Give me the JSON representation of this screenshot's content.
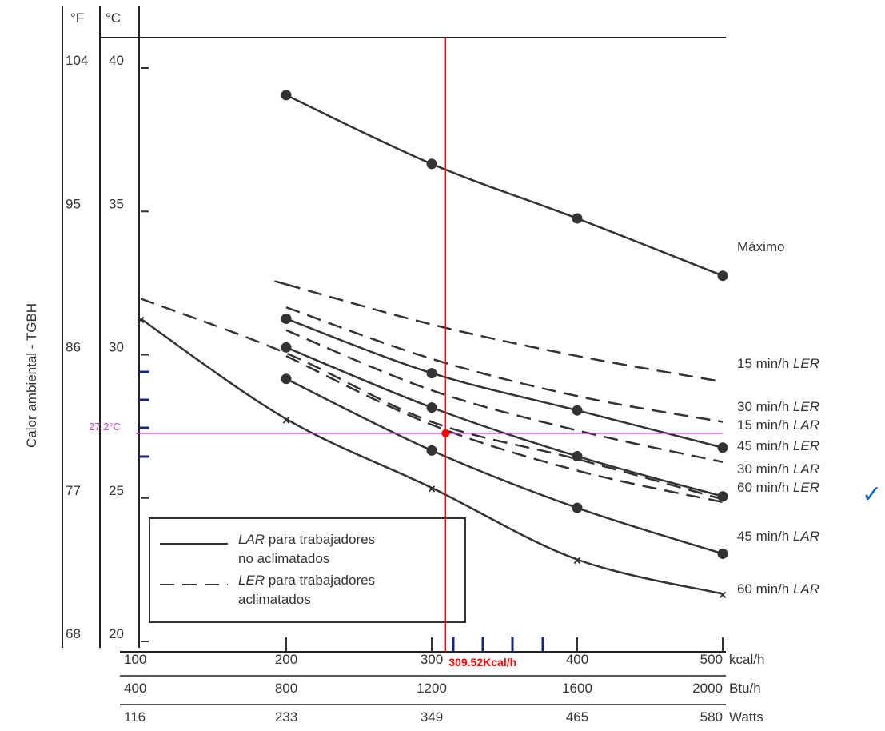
{
  "chart_data": {
    "type": "line",
    "ylabel": "Calor ambiental - TGBH",
    "y_headers": [
      "°F",
      "°C"
    ],
    "ylim_c": [
      20,
      40
    ],
    "xlim_kcal": [
      100,
      500
    ],
    "y_ticks": [
      {
        "c": "40",
        "f": "104",
        "val": 40
      },
      {
        "c": "35",
        "f": "95",
        "val": 35
      },
      {
        "c": "30",
        "f": "86",
        "val": 30
      },
      {
        "c": "25",
        "f": "77",
        "val": 25
      },
      {
        "c": "20",
        "f": "68",
        "val": 20
      }
    ],
    "x_axes": [
      {
        "unit": "kcal/h",
        "ticks": [
          "100",
          "200",
          "300",
          "400",
          "500"
        ]
      },
      {
        "unit": "Btu/h",
        "ticks": [
          "400",
          "800",
          "1200",
          "1600",
          "2000"
        ]
      },
      {
        "unit": "Watts",
        "ticks": [
          "116",
          "233",
          "349",
          "465",
          "580"
        ]
      }
    ],
    "series": [
      {
        "name": "Máximo",
        "style": "solid",
        "marker": "dot",
        "x": [
          200,
          300,
          400,
          500
        ],
        "y": [
          39.0,
          36.6,
          34.7,
          32.7
        ]
      },
      {
        "name": "15 min/h LER",
        "style": "dashed",
        "marker": "none",
        "x": [
          200,
          300,
          400,
          500
        ],
        "y": [
          32.4,
          31.0,
          29.9,
          29.0
        ]
      },
      {
        "name": "30 min/h LER",
        "style": "dashed",
        "marker": "none",
        "x": [
          200,
          300,
          400,
          500
        ],
        "y": [
          31.6,
          29.8,
          28.5,
          27.6
        ]
      },
      {
        "name": "15 min/h LAR",
        "style": "solid",
        "marker": "dot",
        "x": [
          200,
          300,
          400,
          500
        ],
        "y": [
          31.2,
          29.3,
          28.0,
          26.7
        ]
      },
      {
        "name": "45 min/h LER",
        "style": "dashed",
        "marker": "none",
        "x": [
          200,
          300,
          400,
          500
        ],
        "y": [
          30.8,
          28.7,
          27.3,
          26.2
        ]
      },
      {
        "name": "30 min/h LAR",
        "style": "solid",
        "marker": "dot",
        "x": [
          200,
          300,
          400,
          500
        ],
        "y": [
          30.2,
          28.1,
          26.4,
          25.0
        ]
      },
      {
        "name": "60 min/h LER",
        "style": "dashed",
        "marker": "none",
        "x": [
          200,
          300,
          400,
          500
        ],
        "y": [
          29.9,
          27.5,
          25.9,
          24.8
        ]
      },
      {
        "name": "45 min/h LAR",
        "style": "solid",
        "marker": "dot",
        "x": [
          200,
          300,
          400,
          500
        ],
        "y": [
          29.1,
          26.6,
          24.6,
          23.0
        ]
      },
      {
        "name": "60 min/h LAR",
        "style": "solid",
        "marker": "x",
        "x": [
          100,
          200,
          300,
          400,
          500
        ],
        "y": [
          31.2,
          27.7,
          25.3,
          22.8,
          21.6
        ]
      }
    ],
    "legend": [
      {
        "style": "solid",
        "term": "LAR",
        "rest": " para trabajadores",
        "line2": "no aclimatados"
      },
      {
        "style": "dashed",
        "term": "LER",
        "rest": " para trabajadores",
        "line2": "aclimatados"
      }
    ],
    "annotations": {
      "point": {
        "x": 309.52,
        "y": 27.2
      },
      "x_label": "309.52Kcal/h",
      "y_label": "27.2°C",
      "check": "✓",
      "check_series": "60 min/h LER",
      "v_color": "#ff0000",
      "h_color": "#cc44cc",
      "dot_color": "#ff0000",
      "tick_color": "#1a237e"
    },
    "grid": false,
    "legend_position": "bottom-left"
  }
}
